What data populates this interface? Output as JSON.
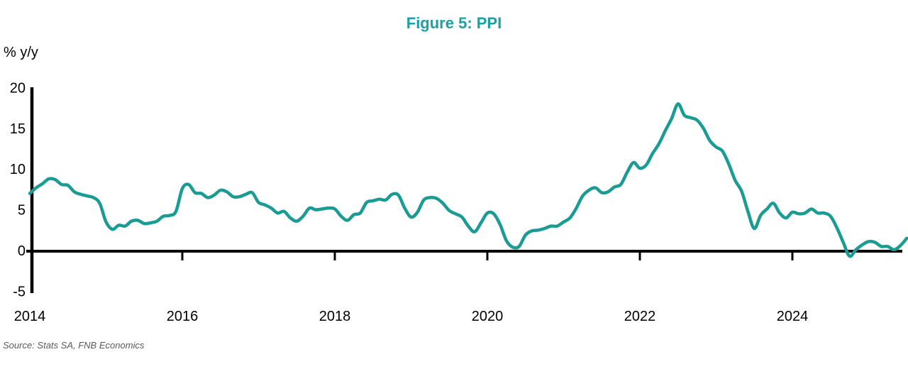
{
  "title": "Figure 5: PPI",
  "y_axis_label": "% y/y",
  "source": "Source: Stats SA, FNB Economics",
  "colors": {
    "title": "#1AA0A5",
    "line": "#1A9B93",
    "axis": "#000000",
    "source_text": "#595959"
  },
  "chart_data": {
    "type": "line",
    "title": "Figure 5: PPI",
    "ylabel": "% y/y",
    "frequency": "monthly",
    "x_start": "2014-01",
    "x_end": "2025-07",
    "x_tick_labels": [
      "2014",
      "2016",
      "2018",
      "2020",
      "2022",
      "2024"
    ],
    "y_ticks": [
      20,
      15,
      10,
      5,
      0,
      -5
    ],
    "ylim": [
      -5,
      20
    ],
    "grid": false,
    "legend_position": "none",
    "series": [
      {
        "name": "PPI % y/y",
        "values": [
          7.0,
          7.7,
          8.2,
          8.8,
          8.7,
          8.1,
          8.0,
          7.2,
          6.9,
          6.7,
          6.5,
          5.8,
          3.5,
          2.6,
          3.1,
          3.0,
          3.6,
          3.7,
          3.3,
          3.4,
          3.6,
          4.2,
          4.3,
          4.8,
          7.6,
          8.1,
          7.1,
          7.0,
          6.5,
          6.8,
          7.4,
          7.2,
          6.6,
          6.6,
          6.9,
          7.1,
          5.9,
          5.6,
          5.2,
          4.6,
          4.8,
          4.0,
          3.6,
          4.2,
          5.2,
          5.0,
          5.1,
          5.2,
          5.1,
          4.2,
          3.7,
          4.4,
          4.6,
          5.9,
          6.1,
          6.3,
          6.2,
          6.9,
          6.8,
          5.2,
          4.1,
          4.7,
          6.2,
          6.5,
          6.4,
          5.8,
          4.9,
          4.5,
          4.1,
          3.0,
          2.3,
          3.4,
          4.6,
          4.5,
          3.2,
          1.2,
          0.4,
          0.5,
          1.9,
          2.4,
          2.5,
          2.7,
          3.0,
          3.0,
          3.5,
          4.0,
          5.2,
          6.7,
          7.4,
          7.7,
          7.1,
          7.2,
          7.8,
          8.1,
          9.6,
          10.8,
          10.1,
          10.5,
          11.9,
          13.1,
          14.7,
          16.2,
          18.0,
          16.6,
          16.3,
          16.0,
          15.0,
          13.5,
          12.7,
          12.2,
          10.6,
          8.6,
          7.3,
          4.8,
          2.7,
          4.3,
          5.1,
          5.8,
          4.6,
          4.0,
          4.7,
          4.5,
          4.6,
          5.1,
          4.6,
          4.6,
          4.2,
          2.8,
          1.0,
          -0.7,
          0.1,
          0.7,
          1.1,
          1.0,
          0.5,
          0.5,
          0.1,
          0.6,
          1.5
        ]
      }
    ]
  }
}
